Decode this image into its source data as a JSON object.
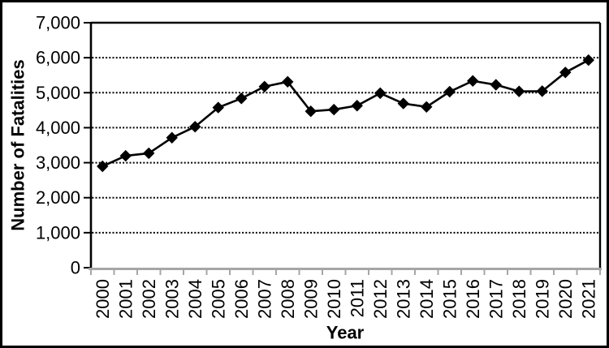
{
  "chart_data": {
    "type": "line",
    "title": "",
    "xlabel": "Year",
    "ylabel": "Number of Fatalities",
    "categories": [
      "2000",
      "2001",
      "2002",
      "2003",
      "2004",
      "2005",
      "2006",
      "2007",
      "2008",
      "2009",
      "2010",
      "2011",
      "2012",
      "2013",
      "2014",
      "2015",
      "2016",
      "2017",
      "2018",
      "2019",
      "2020",
      "2021"
    ],
    "series": [
      {
        "name": "Number of Fatalities",
        "values": [
          2897,
          3197,
          3270,
          3714,
          4028,
          4576,
          4837,
          5174,
          5312,
          4469,
          4518,
          4630,
          4986,
          4692,
          4594,
          5029,
          5337,
          5226,
          5038,
          5044,
          5579,
          5932
        ]
      }
    ],
    "ylim": [
      0,
      7000
    ],
    "ytick_interval": 1000,
    "ytick_labels": [
      "0",
      "1,000",
      "2,000",
      "3,000",
      "4,000",
      "5,000",
      "6,000",
      "7,000"
    ],
    "grid": "horizontal-dotted",
    "legend": "none",
    "marker": "diamond",
    "colors": {
      "series": "#000000",
      "gridline": "#000000",
      "value_axis": "#000000",
      "category_axis": "#a6a6a6",
      "plot_border": "#000000",
      "figure_border": "#000000",
      "background": "#ffffff"
    }
  }
}
